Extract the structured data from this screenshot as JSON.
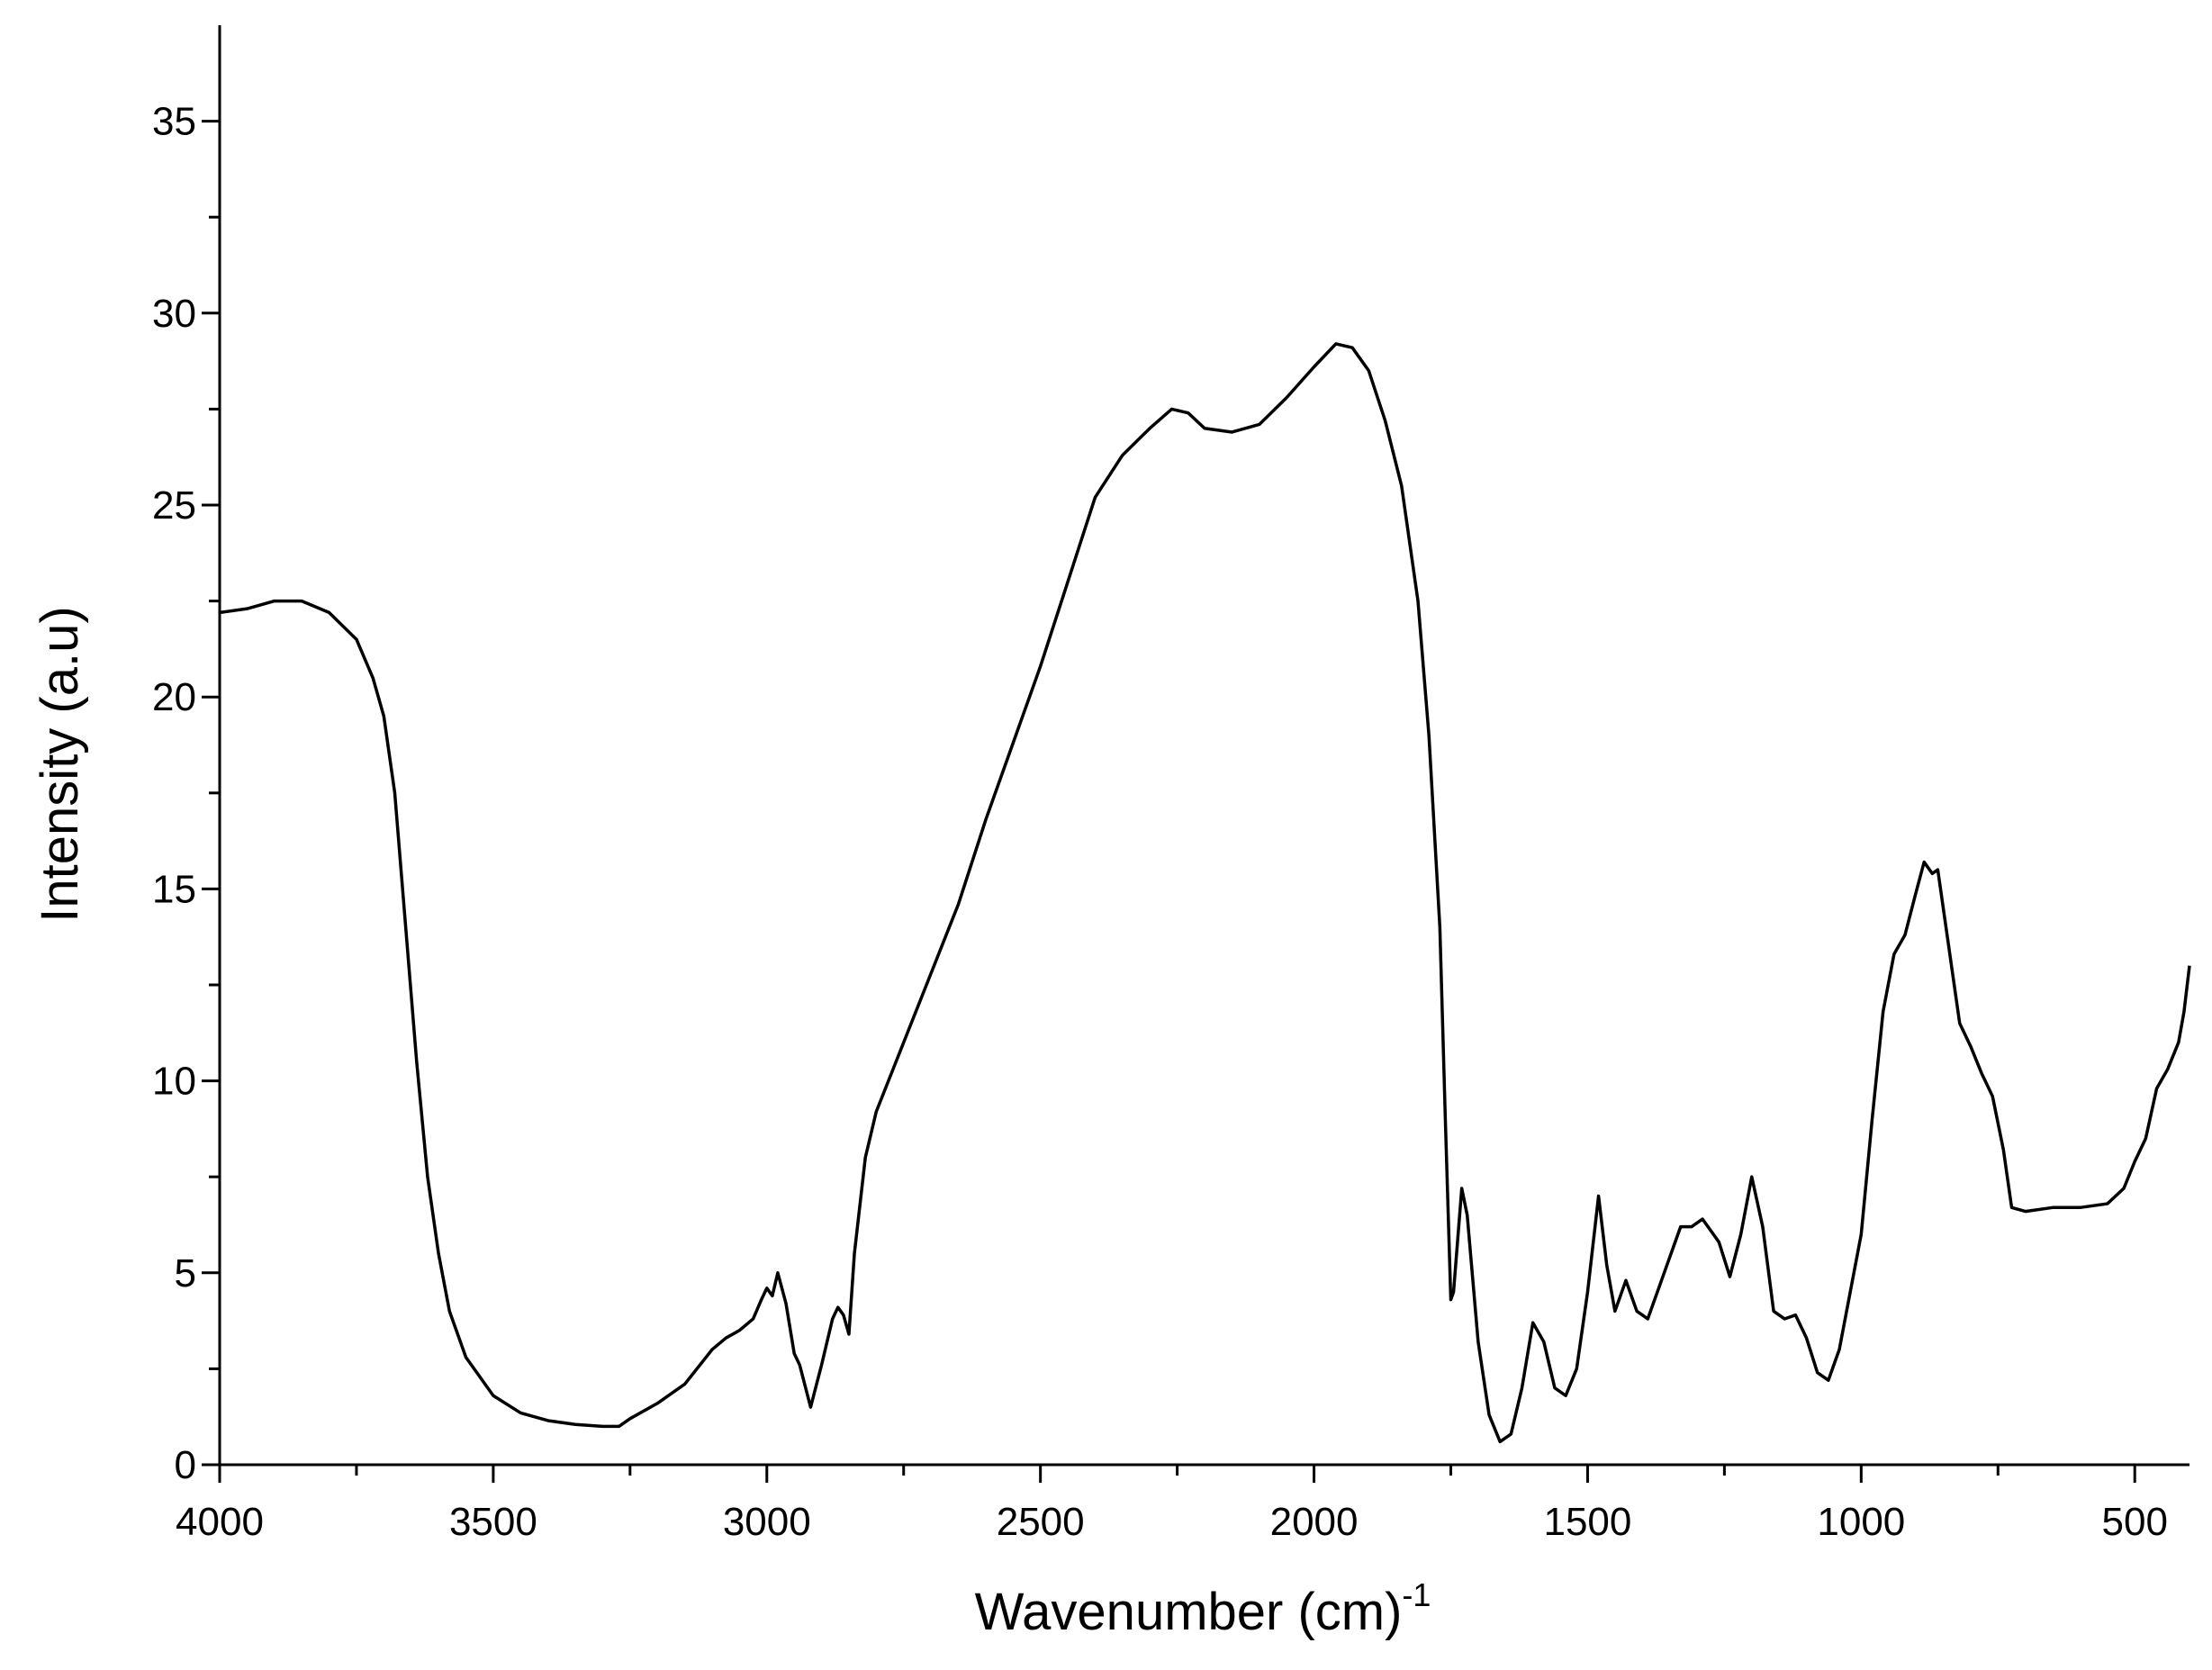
{
  "chart_data": {
    "type": "line",
    "xlabel": {
      "text": "Wavenumber (cm)",
      "superscript": "-1"
    },
    "ylabel": "Intensity (a.u)",
    "color": "#000000",
    "xlim": [
      4000,
      400
    ],
    "ylim": [
      0,
      37.5
    ],
    "xticks": [
      4000,
      3500,
      3000,
      2500,
      2000,
      1500,
      1000,
      500
    ],
    "yticks": [
      0,
      5,
      10,
      15,
      20,
      25,
      30,
      35
    ],
    "xminorticks": [
      3750,
      3250,
      2750,
      2250,
      1750,
      1250,
      750
    ],
    "yminorticks": [
      2.5,
      7.5,
      12.5,
      17.5,
      22.5,
      27.5,
      32.5
    ],
    "x": [
      4000,
      3950,
      3900,
      3850,
      3800,
      3750,
      3720,
      3700,
      3680,
      3660,
      3640,
      3620,
      3600,
      3580,
      3550,
      3500,
      3450,
      3400,
      3350,
      3300,
      3270,
      3250,
      3200,
      3150,
      3100,
      3075,
      3050,
      3025,
      3010,
      3000,
      2990,
      2980,
      2965,
      2950,
      2940,
      2920,
      2900,
      2880,
      2870,
      2860,
      2850,
      2840,
      2820,
      2800,
      2750,
      2700,
      2650,
      2600,
      2550,
      2500,
      2450,
      2400,
      2350,
      2300,
      2260,
      2230,
      2200,
      2150,
      2100,
      2050,
      2000,
      1960,
      1930,
      1900,
      1870,
      1840,
      1810,
      1790,
      1770,
      1760,
      1750,
      1745,
      1730,
      1720,
      1700,
      1680,
      1660,
      1640,
      1620,
      1600,
      1580,
      1560,
      1540,
      1520,
      1500,
      1480,
      1465,
      1450,
      1430,
      1410,
      1390,
      1360,
      1330,
      1310,
      1290,
      1260,
      1240,
      1220,
      1200,
      1180,
      1160,
      1140,
      1120,
      1100,
      1080,
      1060,
      1040,
      1000,
      980,
      960,
      940,
      920,
      900,
      885,
      870,
      860,
      840,
      820,
      800,
      780,
      760,
      740,
      725,
      700,
      650,
      600,
      550,
      520,
      500,
      480,
      460,
      440,
      420,
      410,
      400
    ],
    "values": [
      22.2,
      22.3,
      22.5,
      22.5,
      22.2,
      21.5,
      20.5,
      19.5,
      17.5,
      14,
      10.5,
      7.5,
      5.5,
      4.0,
      2.8,
      1.8,
      1.35,
      1.15,
      1.05,
      1.0,
      1.0,
      1.2,
      1.6,
      2.1,
      3.0,
      3.3,
      3.5,
      3.8,
      4.3,
      4.6,
      4.4,
      5.0,
      4.2,
      2.9,
      2.6,
      1.5,
      2.6,
      3.8,
      4.1,
      3.9,
      3.4,
      5.5,
      8.0,
      9.2,
      11.0,
      12.8,
      14.6,
      16.8,
      18.8,
      20.8,
      23.0,
      25.2,
      26.3,
      27.0,
      27.5,
      27.4,
      27.0,
      26.9,
      27.1,
      27.8,
      28.6,
      29.2,
      29.1,
      28.5,
      27.2,
      25.5,
      22.5,
      19.0,
      14.0,
      9.0,
      4.3,
      4.5,
      7.2,
      6.5,
      3.2,
      1.3,
      0.6,
      0.8,
      2.0,
      3.7,
      3.2,
      2.0,
      1.8,
      2.5,
      4.5,
      7.0,
      5.2,
      4.0,
      4.8,
      4.0,
      3.8,
      5.0,
      6.2,
      6.2,
      6.4,
      5.8,
      4.9,
      6.0,
      7.5,
      6.2,
      4.0,
      3.8,
      3.9,
      3.3,
      2.4,
      2.2,
      3.0,
      6.0,
      9.0,
      11.8,
      13.3,
      13.8,
      14.9,
      15.7,
      15.4,
      15.5,
      13.5,
      11.5,
      10.9,
      10.2,
      9.6,
      8.2,
      6.7,
      6.6,
      6.7,
      6.7,
      6.8,
      7.2,
      7.9,
      8.5,
      9.8,
      10.3,
      11.0,
      11.8,
      13.0
    ]
  }
}
